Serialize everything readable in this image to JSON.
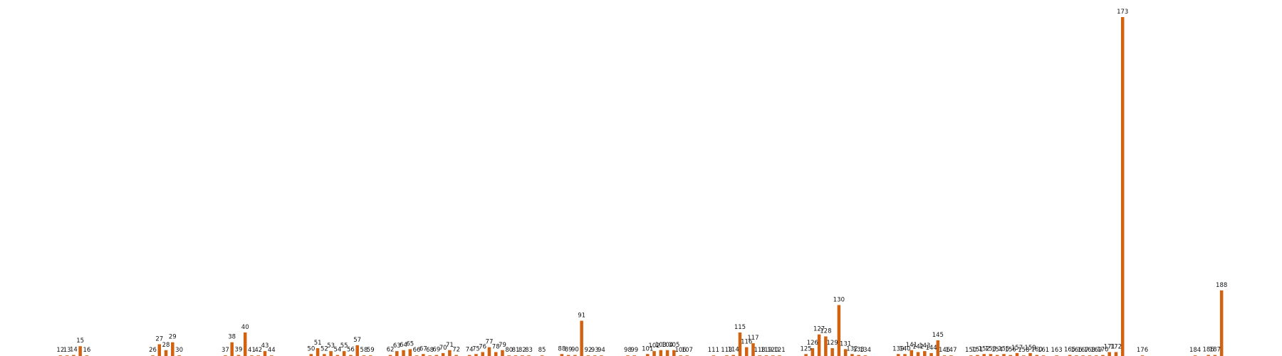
{
  "chart_data": {
    "type": "bar",
    "title": "",
    "xlabel": "",
    "ylabel": "",
    "colors": {
      "bar": "#d2620f"
    },
    "grid": false,
    "legend": "none",
    "x_range": [
      5,
      195
    ],
    "ylim": [
      0,
      173
    ],
    "categories": [
      12,
      13,
      14,
      15,
      16,
      26,
      27,
      28,
      29,
      30,
      37,
      38,
      39,
      40,
      41,
      42,
      43,
      44,
      50,
      51,
      52,
      53,
      54,
      55,
      56,
      57,
      58,
      59,
      62,
      63,
      64,
      65,
      66,
      67,
      68,
      69,
      70,
      71,
      72,
      74,
      75,
      76,
      77,
      78,
      79,
      80,
      81,
      82,
      83,
      85,
      88,
      89,
      90,
      91,
      92,
      93,
      94,
      98,
      99,
      101,
      102,
      103,
      104,
      105,
      106,
      107,
      111,
      113,
      114,
      115,
      116,
      117,
      118,
      119,
      120,
      121,
      125,
      126,
      127,
      128,
      129,
      130,
      131,
      132,
      133,
      134,
      139,
      140,
      141,
      142,
      143,
      144,
      145,
      146,
      147,
      150,
      151,
      152,
      153,
      154,
      155,
      156,
      157,
      158,
      159,
      160,
      161,
      163,
      165,
      166,
      167,
      168,
      169,
      170,
      171,
      172,
      173,
      176,
      184,
      186,
      187,
      188
    ],
    "values": [
      0.2,
      0.2,
      0.5,
      5,
      0.2,
      0.3,
      6,
      3,
      7,
      0.3,
      0.3,
      7,
      0.5,
      12,
      0.3,
      0.2,
      2.5,
      0.2,
      1,
      4,
      1,
      2.5,
      0.5,
      2.5,
      0.5,
      5.5,
      0.3,
      0.2,
      0.5,
      2.5,
      3,
      3.5,
      0.2,
      1,
      0.2,
      0.5,
      1.5,
      3,
      0.5,
      0.5,
      1,
      2,
      4.5,
      2,
      3,
      0.3,
      0.3,
      0.3,
      0.3,
      0.3,
      1,
      0.5,
      0.5,
      18,
      0.2,
      0.2,
      0.2,
      0.3,
      0.3,
      1,
      2.5,
      3,
      3,
      3,
      0.2,
      0.2,
      0.2,
      0.3,
      0.5,
      12,
      4.5,
      6.5,
      0.3,
      0.3,
      0.2,
      0.2,
      1,
      4,
      11,
      10,
      4,
      26,
      3.5,
      1,
      0.5,
      0.3,
      1,
      1,
      3,
      2,
      2.5,
      1.5,
      8,
      0.3,
      0.2,
      0.2,
      0.5,
      1,
      1,
      0.5,
      1,
      0.5,
      1.5,
      0.2,
      1.5,
      0.5,
      0.2,
      0.2,
      0.5,
      0.2,
      0.2,
      0.2,
      0.2,
      0.5,
      2,
      2,
      173,
      0.2,
      0.2,
      0.5,
      0.5,
      33.5
    ]
  }
}
